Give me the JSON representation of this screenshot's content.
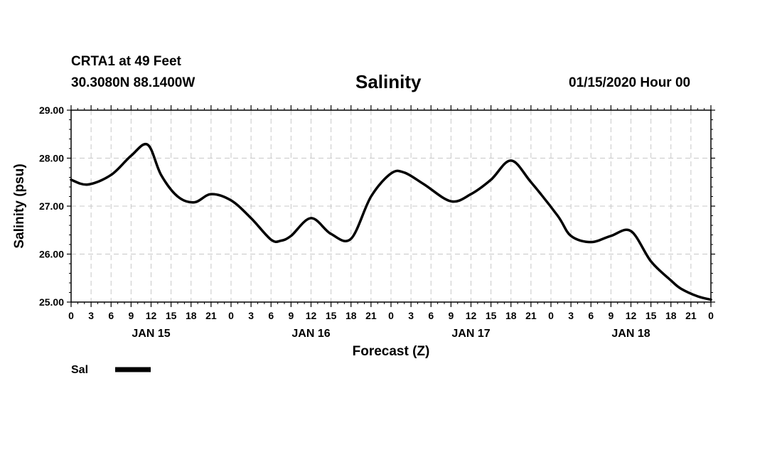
{
  "header": {
    "station": "CRTA1 at 49 Feet",
    "location": "30.3080N 88.1400W",
    "title": "Salinity",
    "run_time": "01/15/2020 Hour 00"
  },
  "chart_data": {
    "type": "line",
    "title": "Salinity",
    "xlabel": "Forecast (Z)",
    "ylabel": "Salinity (psu)",
    "ylim": [
      25.0,
      29.0
    ],
    "y_ticks": [
      "25.00",
      "26.00",
      "27.00",
      "28.00",
      "29.00"
    ],
    "xlim": [
      0,
      96
    ],
    "x_tick_step_hours": 3,
    "x_tick_labels": [
      "0",
      "3",
      "6",
      "9",
      "12",
      "15",
      "18",
      "21",
      "0",
      "3",
      "6",
      "9",
      "12",
      "15",
      "18",
      "21",
      "0",
      "3",
      "6",
      "9",
      "12",
      "15",
      "18",
      "21",
      "0",
      "3",
      "6",
      "9",
      "12",
      "15",
      "18",
      "21",
      "0"
    ],
    "day_labels": [
      {
        "text": "JAN 15",
        "hour": 12
      },
      {
        "text": "JAN 16",
        "hour": 36
      },
      {
        "text": "JAN 17",
        "hour": 60
      },
      {
        "text": "JAN 18",
        "hour": 84
      }
    ],
    "grid": true,
    "series": [
      {
        "name": "Sal",
        "color": "#000000",
        "x": [
          0,
          2.5,
          6,
          9,
          11.5,
          13.5,
          16,
          18.5,
          21,
          24,
          27,
          30,
          31.5,
          33,
          36,
          39,
          42,
          45,
          48,
          50,
          53,
          57,
          60,
          63,
          66,
          69,
          73,
          75,
          78,
          81,
          84,
          87,
          90,
          91.5,
          94,
          96
        ],
        "values": [
          27.55,
          27.45,
          27.65,
          28.05,
          28.28,
          27.65,
          27.2,
          27.08,
          27.25,
          27.12,
          26.75,
          26.3,
          26.28,
          26.38,
          26.75,
          26.42,
          26.32,
          27.2,
          27.68,
          27.7,
          27.45,
          27.1,
          27.25,
          27.55,
          27.95,
          27.5,
          26.8,
          26.38,
          26.25,
          26.38,
          26.48,
          25.85,
          25.45,
          25.28,
          25.12,
          25.05
        ]
      }
    ],
    "legend": [
      {
        "label": "Sal",
        "color": "#000000"
      }
    ],
    "legend_position": "bottom-left"
  }
}
